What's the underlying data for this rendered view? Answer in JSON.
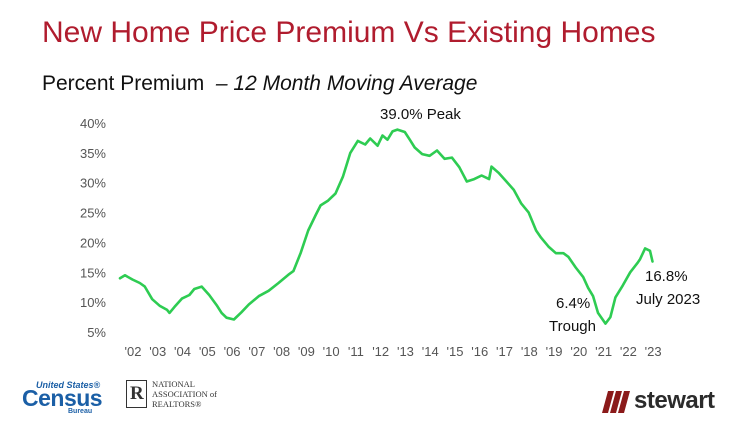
{
  "title": "New Home Price Premium Vs Existing Homes",
  "subtitle_main": "Percent Premium",
  "subtitle_dash": "–",
  "subtitle_italic": "12 Month Moving Average",
  "annotations": {
    "peak": "39.0% Peak",
    "trough_value": "6.4%",
    "trough_label": "Trough",
    "latest_value": "16.8%",
    "latest_label": "July 2023"
  },
  "logos": {
    "census_top": "United States®",
    "census_main": "Census",
    "census_sub": "Bureau",
    "nar": "NATIONAL\nASSOCIATION of\nREALTORS®",
    "stewart": "stewart"
  },
  "colors": {
    "title": "#b01c2e",
    "line": "#2ecc52",
    "census": "#1b5fa6",
    "stewart_mark": "#8b1a1a"
  },
  "chart_data": {
    "type": "line",
    "title": "New Home Price Premium Vs Existing Homes",
    "ylabel": "Percent Premium – 12 Month Moving Average",
    "ylim": [
      5,
      40
    ],
    "yticks": [
      5,
      10,
      15,
      20,
      25,
      30,
      35,
      40
    ],
    "ytick_labels": [
      "5%",
      "10%",
      "15%",
      "20%",
      "25%",
      "30%",
      "35%",
      "40%"
    ],
    "xlim": [
      2002,
      2023.6
    ],
    "xticks": [
      2002,
      2003,
      2004,
      2005,
      2006,
      2007,
      2008,
      2009,
      2010,
      2011,
      2012,
      2013,
      2014,
      2015,
      2016,
      2017,
      2018,
      2019,
      2020,
      2021,
      2022,
      2023
    ],
    "xtick_labels": [
      "'02",
      "'03",
      "'04",
      "'05",
      "'06",
      "'07",
      "'08",
      "'09",
      "'10",
      "'11",
      "'12",
      "'13",
      "'14",
      "'15",
      "'16",
      "'17",
      "'18",
      "'19",
      "'20",
      "'21",
      "'22",
      "'23"
    ],
    "grid": false,
    "series": [
      {
        "x": [
          2002.0,
          2002.2,
          2002.5,
          2002.8,
          2003.0,
          2003.3,
          2003.6,
          2003.9,
          2004.0,
          2004.2,
          2004.5,
          2004.8,
          2005.0,
          2005.3,
          2005.6,
          2005.9,
          2006.1,
          2006.3,
          2006.6,
          2006.9,
          2007.2,
          2007.6,
          2008.0,
          2008.4,
          2008.8,
          2009.0,
          2009.3,
          2009.6,
          2009.9,
          2010.1,
          2010.4,
          2010.7,
          2011.0,
          2011.3,
          2011.6,
          2011.9,
          2012.1,
          2012.4,
          2012.6,
          2012.8,
          2013.0,
          2013.2,
          2013.5,
          2013.7,
          2013.9,
          2014.2,
          2014.5,
          2014.8,
          2015.1,
          2015.4,
          2015.7,
          2016.0,
          2016.3,
          2016.6,
          2016.9,
          2017.0,
          2017.3,
          2017.6,
          2017.9,
          2018.2,
          2018.5,
          2018.8,
          2019.0,
          2019.3,
          2019.6,
          2019.9,
          2020.1,
          2020.4,
          2020.7,
          2020.9,
          2021.1,
          2021.3,
          2021.6,
          2021.8,
          2022.0,
          2022.3,
          2022.6,
          2022.9,
          2023.0,
          2023.2,
          2023.4,
          2023.5
        ],
        "y": [
          14.0,
          14.5,
          13.8,
          13.2,
          12.6,
          10.5,
          9.4,
          8.7,
          8.2,
          9.2,
          10.6,
          11.2,
          12.2,
          12.6,
          11.2,
          9.5,
          8.2,
          7.4,
          7.1,
          8.3,
          9.6,
          11.0,
          11.9,
          13.2,
          14.6,
          15.2,
          18.3,
          22.0,
          24.6,
          26.2,
          27.0,
          28.2,
          31.0,
          35.0,
          37.0,
          36.4,
          37.4,
          36.2,
          37.9,
          37.2,
          38.6,
          38.9,
          38.5,
          37.2,
          35.9,
          34.8,
          34.5,
          35.4,
          34.0,
          34.2,
          32.6,
          30.2,
          30.6,
          31.2,
          30.6,
          32.7,
          31.6,
          30.2,
          28.8,
          26.5,
          25.0,
          22.0,
          20.8,
          19.3,
          18.2,
          18.2,
          17.6,
          15.8,
          14.2,
          12.4,
          11.0,
          8.2,
          6.4,
          7.5,
          10.8,
          12.8,
          15.0,
          16.6,
          17.2,
          19.0,
          18.6,
          16.8
        ]
      }
    ],
    "annotations": [
      {
        "text": "39.0% Peak",
        "x": 2013.2,
        "y": 39.0
      },
      {
        "text": "6.4% Trough",
        "x": 2021.6,
        "y": 6.4
      },
      {
        "text": "16.8% July 2023",
        "x": 2023.5,
        "y": 16.8
      }
    ]
  }
}
